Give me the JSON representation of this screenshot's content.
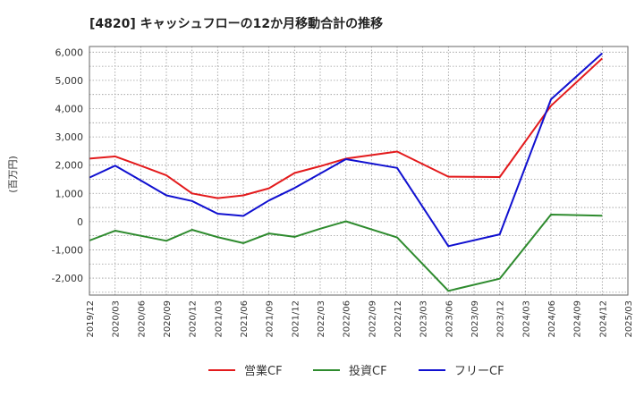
{
  "chart_data": {
    "type": "line",
    "title": "[4820]  キャッシュフローの12か月移動合計の推移",
    "ylabel": "(百万円)",
    "xlabel": "",
    "ylim": [
      -2600,
      6200
    ],
    "yticks": [
      -2000,
      -1000,
      0,
      1000,
      2000,
      3000,
      4000,
      5000,
      6000
    ],
    "ytick_labels": [
      "-2,000",
      "-1,000",
      "0",
      "1,000",
      "2,000",
      "3,000",
      "4,000",
      "5,000",
      "6,000"
    ],
    "categories": [
      "2019/12",
      "2020/03",
      "2020/06",
      "2020/09",
      "2020/12",
      "2021/03",
      "2021/06",
      "2021/09",
      "2021/12",
      "2022/03",
      "2022/06",
      "2022/09",
      "2022/12",
      "2023/03",
      "2023/06",
      "2023/09",
      "2023/12",
      "2024/03",
      "2024/06",
      "2024/09",
      "2024/12",
      "2025/03"
    ],
    "grid": true,
    "legend": "bottom",
    "series": [
      {
        "name": "営業CF",
        "color": "#e31a1c",
        "values": [
          2230,
          2310,
          1980,
          1640,
          1000,
          830,
          930,
          1180,
          1720,
          1960,
          2230,
          null,
          2480,
          null,
          1590,
          null,
          1580,
          null,
          4100,
          null,
          5780,
          null
        ]
      },
      {
        "name": "投資CF",
        "color": "#2e8b2e",
        "values": [
          -670,
          -320,
          -500,
          -680,
          -290,
          -550,
          -760,
          -420,
          -540,
          -250,
          10,
          null,
          -560,
          null,
          -2450,
          null,
          -2020,
          null,
          250,
          null,
          210,
          null
        ]
      },
      {
        "name": "フリーCF",
        "color": "#1010d0",
        "values": [
          1560,
          1980,
          1460,
          930,
          730,
          280,
          200,
          750,
          1190,
          null,
          2210,
          null,
          1900,
          null,
          -870,
          null,
          -450,
          null,
          4330,
          null,
          5960,
          null
        ]
      }
    ]
  }
}
